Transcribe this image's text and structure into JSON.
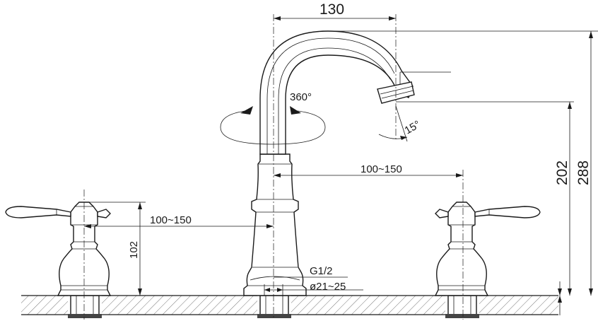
{
  "dimensions": {
    "spout_reach": "130",
    "rotation": "360°",
    "spout_angle": "15°",
    "outlet_height": "202",
    "total_height": "288",
    "handle_spacing_right": "100~150",
    "handle_spacing_left": "100~150",
    "handle_height": "102",
    "thread": "G1/2",
    "hole_diameter": "ø21~25"
  },
  "colors": {
    "line": "#1a1a1a",
    "background": "#ffffff"
  }
}
